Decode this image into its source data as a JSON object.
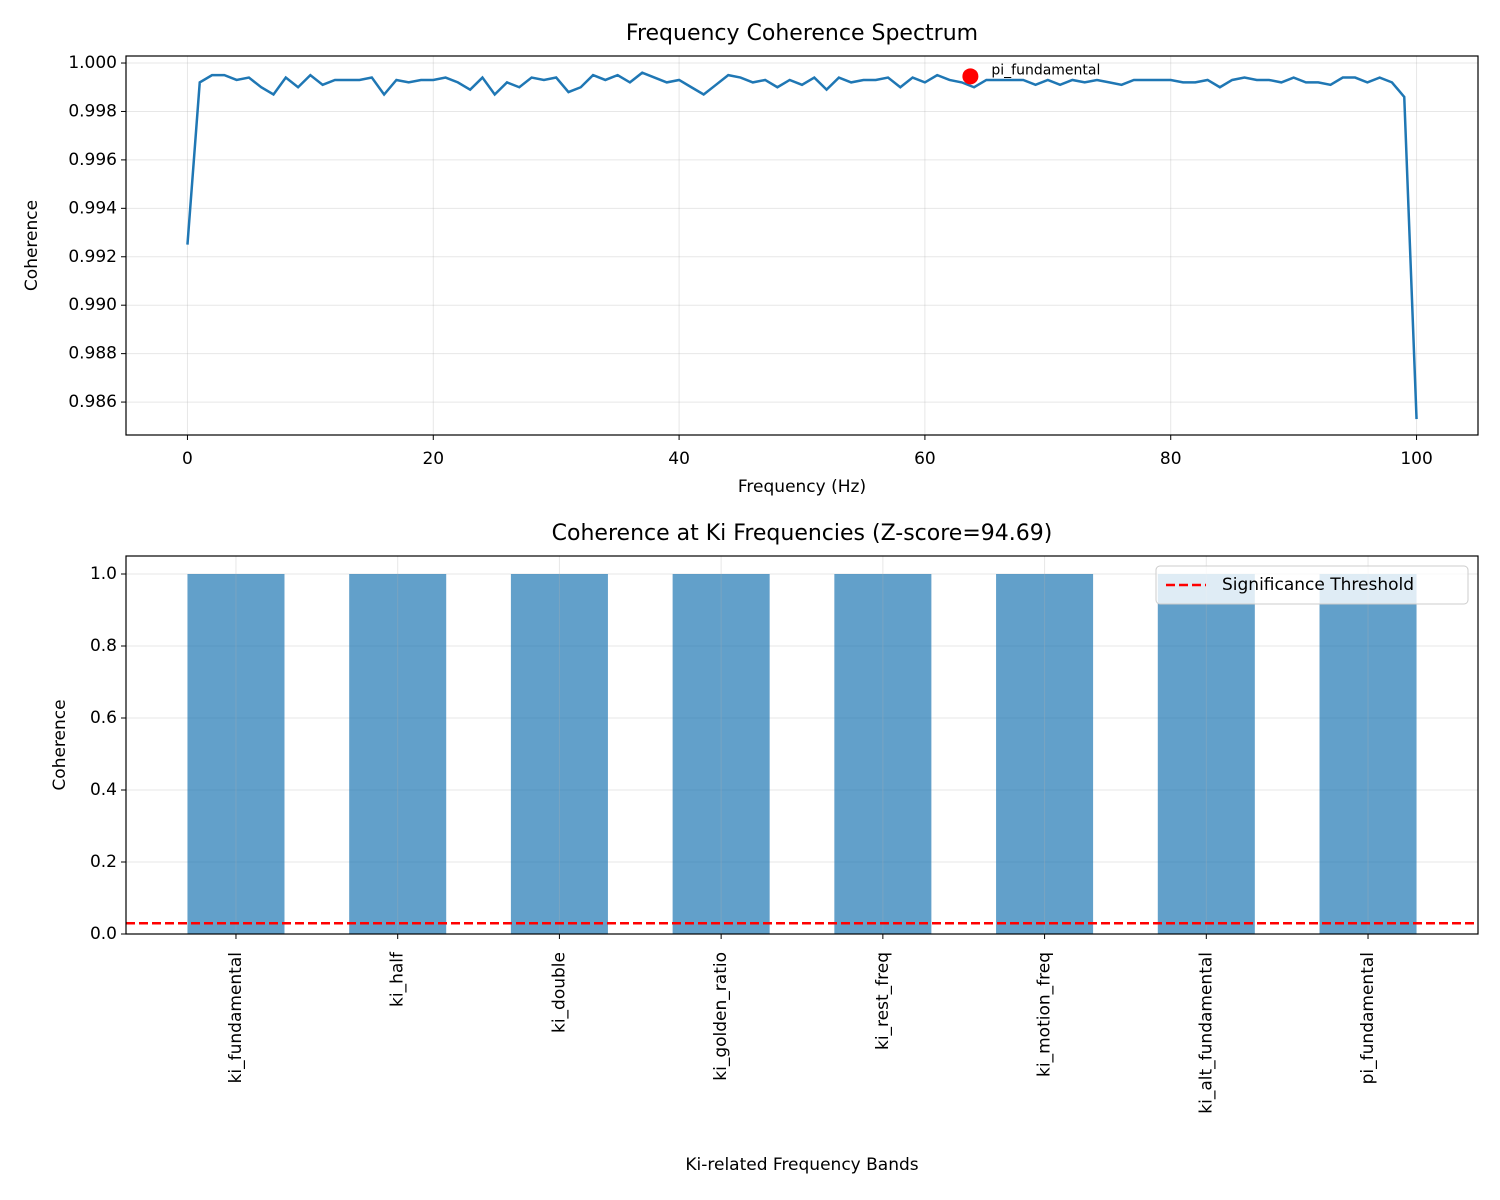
{
  "chart_data": [
    {
      "type": "line",
      "title": "Frequency Coherence Spectrum",
      "x_label": "Frequency (Hz)",
      "y_label": "Coherence",
      "x": [
        0,
        1,
        2,
        3,
        4,
        5,
        6,
        7,
        8,
        9,
        10,
        11,
        12,
        13,
        14,
        15,
        16,
        17,
        18,
        19,
        20,
        21,
        22,
        23,
        24,
        25,
        26,
        27,
        28,
        29,
        30,
        31,
        32,
        33,
        34,
        35,
        36,
        37,
        38,
        39,
        40,
        41,
        42,
        43,
        44,
        45,
        46,
        47,
        48,
        49,
        50,
        51,
        52,
        53,
        54,
        55,
        56,
        57,
        58,
        59,
        60,
        61,
        62,
        63,
        64,
        65,
        66,
        67,
        68,
        69,
        70,
        71,
        72,
        73,
        74,
        75,
        76,
        77,
        78,
        79,
        80,
        81,
        82,
        83,
        84,
        85,
        86,
        87,
        88,
        89,
        90,
        91,
        92,
        93,
        94,
        95,
        96,
        97,
        98,
        99,
        100
      ],
      "series": [
        {
          "name": "Coherence",
          "color": "#1f77b4",
          "values": [
            0.9925,
            0.9992,
            0.9995,
            0.9995,
            0.9993,
            0.9994,
            0.999,
            0.9987,
            0.9994,
            0.999,
            0.9995,
            0.9991,
            0.9993,
            0.9993,
            0.9993,
            0.9994,
            0.9987,
            0.9993,
            0.9992,
            0.9993,
            0.9993,
            0.9994,
            0.9992,
            0.9989,
            0.9994,
            0.9987,
            0.9992,
            0.999,
            0.9994,
            0.9993,
            0.9994,
            0.9988,
            0.999,
            0.9995,
            0.9993,
            0.9995,
            0.9992,
            0.9996,
            0.9994,
            0.9992,
            0.9993,
            0.999,
            0.9987,
            0.9991,
            0.9995,
            0.9994,
            0.9992,
            0.9993,
            0.999,
            0.9993,
            0.9991,
            0.9994,
            0.9989,
            0.9994,
            0.9992,
            0.9993,
            0.9993,
            0.9994,
            0.999,
            0.9994,
            0.9992,
            0.9995,
            0.9993,
            0.9992,
            0.999,
            0.9993,
            0.9993,
            0.9993,
            0.9993,
            0.9991,
            0.9993,
            0.9991,
            0.9993,
            0.9992,
            0.9993,
            0.9992,
            0.9991,
            0.9993,
            0.9993,
            0.9993,
            0.9993,
            0.9992,
            0.9992,
            0.9993,
            0.999,
            0.9993,
            0.9994,
            0.9993,
            0.9993,
            0.9992,
            0.9994,
            0.9992,
            0.9992,
            0.9991,
            0.9994,
            0.9994,
            0.9992,
            0.9994,
            0.9992,
            0.9986,
            0.9853
          ]
        }
      ],
      "highlight": {
        "x": 63.7,
        "y": 0.99945,
        "label": "pi_fundamental",
        "color": "#ff0000"
      },
      "xlim": [
        -5,
        105
      ],
      "xticks": [
        0,
        20,
        40,
        60,
        80,
        100
      ],
      "ylim": [
        0.98464,
        1.00029
      ],
      "yticks": [
        0.986,
        0.988,
        {
          "value": 0.99,
          "label": "0.990"
        },
        0.992,
        0.994,
        0.996,
        0.998,
        {
          "value": 1,
          "label": "1.000"
        }
      ],
      "grid": true
    },
    {
      "type": "bar",
      "title": "Coherence at Ki Frequencies (Z-score=94.69)",
      "x_label": "Ki-related Frequency Bands",
      "y_label": "Coherence",
      "categories": [
        "ki_fundamental",
        "ki_half",
        "ki_double",
        "ki_golden_ratio",
        "ki_rest_freq",
        "ki_motion_freq",
        "ki_alt_fundamental",
        "pi_fundamental"
      ],
      "values": [
        1,
        1,
        1,
        1,
        1,
        1,
        1,
        1
      ],
      "color": "#1f77b4",
      "opacity": 0.7,
      "threshold": {
        "name": "Significance Threshold",
        "value": 0.03,
        "color": "#ff0000"
      },
      "legend": "upper right",
      "xlim": [
        -0.68,
        7.68
      ],
      "ylim": [
        0,
        1.05
      ],
      "yticks": [
        {
          "value": 0,
          "label": "0.0"
        },
        0.2,
        0.4,
        0.6,
        0.8,
        {
          "value": 1,
          "label": "1.0"
        }
      ],
      "grid": true
    }
  ]
}
